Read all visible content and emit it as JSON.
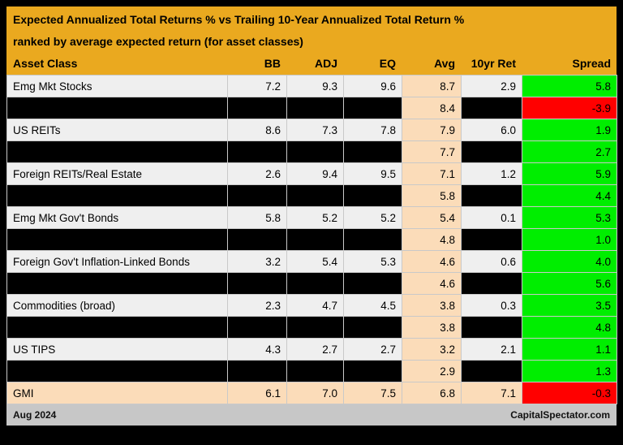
{
  "header": {
    "title": "Expected Annualized Total Returns % vs Trailing 10-Year Annualized Total Return %",
    "subtitle": "ranked by average expected return (for asset classes)"
  },
  "chart_data": {
    "type": "table",
    "title": "Expected Annualized Total Returns % vs Trailing 10-Year Annualized Total Return %",
    "subtitle": "ranked by average expected return (for asset classes)",
    "columns": [
      "Asset Class",
      "BB",
      "ADJ",
      "EQ",
      "Avg",
      "10yr Ret",
      "Spread"
    ],
    "rows": [
      {
        "type": "visible",
        "asset_class": "Emg Mkt Stocks",
        "bb": "7.2",
        "adj": "9.3",
        "eq": "9.6",
        "avg": "8.7",
        "tenyr_ret": "2.9",
        "spread": "5.8",
        "spread_color": "green"
      },
      {
        "type": "hidden",
        "asset_class": "",
        "bb": "",
        "adj": "",
        "eq": "",
        "avg": "8.4",
        "tenyr_ret": "",
        "spread": "-3.9",
        "spread_color": "red"
      },
      {
        "type": "visible",
        "asset_class": "US REITs",
        "bb": "8.6",
        "adj": "7.3",
        "eq": "7.8",
        "avg": "7.9",
        "tenyr_ret": "6.0",
        "spread": "1.9",
        "spread_color": "green"
      },
      {
        "type": "hidden",
        "asset_class": "",
        "bb": "",
        "adj": "",
        "eq": "",
        "avg": "7.7",
        "tenyr_ret": "",
        "spread": "2.7",
        "spread_color": "green"
      },
      {
        "type": "visible",
        "asset_class": "Foreign REITs/Real Estate",
        "bb": "2.6",
        "adj": "9.4",
        "eq": "9.5",
        "avg": "7.1",
        "tenyr_ret": "1.2",
        "spread": "5.9",
        "spread_color": "green"
      },
      {
        "type": "hidden",
        "asset_class": "",
        "bb": "",
        "adj": "",
        "eq": "",
        "avg": "5.8",
        "tenyr_ret": "",
        "spread": "4.4",
        "spread_color": "green"
      },
      {
        "type": "visible",
        "asset_class": "Emg Mkt Gov't Bonds",
        "bb": "5.8",
        "adj": "5.2",
        "eq": "5.2",
        "avg": "5.4",
        "tenyr_ret": "0.1",
        "spread": "5.3",
        "spread_color": "green"
      },
      {
        "type": "hidden",
        "asset_class": "",
        "bb": "",
        "adj": "",
        "eq": "",
        "avg": "4.8",
        "tenyr_ret": "",
        "spread": "1.0",
        "spread_color": "green"
      },
      {
        "type": "visible",
        "asset_class": "Foreign Gov't Inflation-Linked Bonds",
        "bb": "3.2",
        "adj": "5.4",
        "eq": "5.3",
        "avg": "4.6",
        "tenyr_ret": "0.6",
        "spread": "4.0",
        "spread_color": "green"
      },
      {
        "type": "hidden",
        "asset_class": "",
        "bb": "",
        "adj": "",
        "eq": "",
        "avg": "4.6",
        "tenyr_ret": "",
        "spread": "5.6",
        "spread_color": "green"
      },
      {
        "type": "visible",
        "asset_class": "Commodities (broad)",
        "bb": "2.3",
        "adj": "4.7",
        "eq": "4.5",
        "avg": "3.8",
        "tenyr_ret": "0.3",
        "spread": "3.5",
        "spread_color": "green"
      },
      {
        "type": "hidden",
        "asset_class": "",
        "bb": "",
        "adj": "",
        "eq": "",
        "avg": "3.8",
        "tenyr_ret": "",
        "spread": "4.8",
        "spread_color": "green"
      },
      {
        "type": "visible",
        "asset_class": "US TIPS",
        "bb": "4.3",
        "adj": "2.7",
        "eq": "2.7",
        "avg": "3.2",
        "tenyr_ret": "2.1",
        "spread": "1.1",
        "spread_color": "green"
      },
      {
        "type": "hidden",
        "asset_class": "",
        "bb": "",
        "adj": "",
        "eq": "",
        "avg": "2.9",
        "tenyr_ret": "",
        "spread": "1.3",
        "spread_color": "green"
      },
      {
        "type": "gmi",
        "asset_class": "GMI",
        "bb": "6.1",
        "adj": "7.0",
        "eq": "7.5",
        "avg": "6.8",
        "tenyr_ret": "7.1",
        "spread": "-0.3",
        "spread_color": "red"
      }
    ],
    "layout": {
      "avg_column_highlighted": true,
      "hidden_rows_blacked_out": true,
      "numeric_columns_right_aligned": true
    }
  },
  "footer": {
    "left": "Aug 2024",
    "right": "CapitalSpectator.com"
  },
  "colors": {
    "header_bg": "#EAA91F",
    "row_bg": "#EFEFEF",
    "hidden_row_bg": "#000000",
    "highlight_bg": "#FBDCB9",
    "positive_spread": "#00EE00",
    "negative_spread": "#FF0000",
    "footer_bg": "#C7C7C7",
    "outer_border": "#000000"
  }
}
